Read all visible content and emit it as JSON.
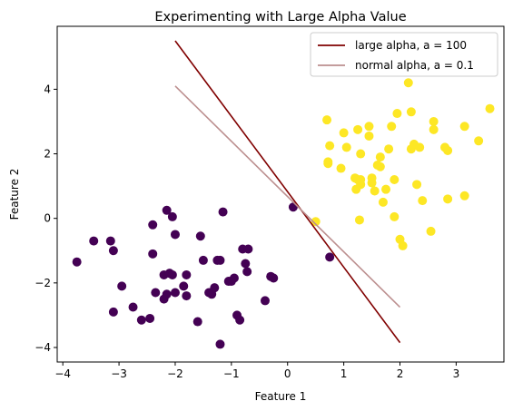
{
  "chart_data": {
    "type": "scatter",
    "title": "Experimenting with Large Alpha Value",
    "xlabel": "Feature 1",
    "ylabel": "Feature 2",
    "xlim": [
      -4.1,
      3.85
    ],
    "ylim": [
      -4.45,
      5.95
    ],
    "xticks": [
      -4,
      -3,
      -2,
      -1,
      0,
      1,
      2,
      3
    ],
    "yticks": [
      -4,
      -2,
      0,
      2,
      4
    ],
    "xtick_labels": [
      "−4",
      "−3",
      "−2",
      "−1",
      "0",
      "1",
      "2",
      "3"
    ],
    "ytick_labels": [
      "−4",
      "−2",
      "0",
      "2",
      "4"
    ],
    "grid": false,
    "legend_position": "top-right",
    "series": [
      {
        "kind": "points",
        "color": "#440154",
        "points": [
          [
            -3.75,
            -1.35
          ],
          [
            -3.45,
            -0.7
          ],
          [
            -3.15,
            -0.7
          ],
          [
            -3.1,
            -1.0
          ],
          [
            -2.95,
            -2.1
          ],
          [
            -3.1,
            -2.9
          ],
          [
            -2.75,
            -2.75
          ],
          [
            -2.6,
            -3.15
          ],
          [
            -2.45,
            -3.1
          ],
          [
            -2.35,
            -2.3
          ],
          [
            -2.4,
            -1.1
          ],
          [
            -2.4,
            -0.2
          ],
          [
            -2.2,
            -1.75
          ],
          [
            -2.2,
            -2.5
          ],
          [
            -2.15,
            -2.35
          ],
          [
            -2.1,
            -1.7
          ],
          [
            -2.05,
            -1.75
          ],
          [
            -2.15,
            0.25
          ],
          [
            -2.05,
            0.05
          ],
          [
            -2.0,
            -0.5
          ],
          [
            -2.0,
            -2.3
          ],
          [
            -1.85,
            -2.1
          ],
          [
            -1.8,
            -2.4
          ],
          [
            -1.8,
            -1.75
          ],
          [
            -1.6,
            -3.2
          ],
          [
            -1.55,
            -0.55
          ],
          [
            -1.5,
            -1.3
          ],
          [
            -1.4,
            -2.3
          ],
          [
            -1.35,
            -2.35
          ],
          [
            -1.3,
            -2.15
          ],
          [
            -1.25,
            -1.3
          ],
          [
            -1.2,
            -1.3
          ],
          [
            -1.15,
            0.2
          ],
          [
            -1.2,
            -3.9
          ],
          [
            -1.05,
            -1.95
          ],
          [
            -1.0,
            -1.95
          ],
          [
            -0.95,
            -1.85
          ],
          [
            -0.9,
            -3.0
          ],
          [
            -0.85,
            -3.15
          ],
          [
            -0.8,
            -0.95
          ],
          [
            -0.75,
            -1.4
          ],
          [
            -0.72,
            -1.65
          ],
          [
            -0.7,
            -0.95
          ],
          [
            -0.4,
            -2.55
          ],
          [
            -0.3,
            -1.8
          ],
          [
            -0.25,
            -1.85
          ],
          [
            0.1,
            0.35
          ],
          [
            0.75,
            -1.2
          ]
        ]
      },
      {
        "kind": "points",
        "color": "#fde725",
        "points": [
          [
            0.5,
            -0.1
          ],
          [
            0.7,
            3.05
          ],
          [
            0.72,
            1.75
          ],
          [
            0.72,
            1.7
          ],
          [
            0.75,
            2.25
          ],
          [
            0.95,
            1.55
          ],
          [
            1.0,
            2.65
          ],
          [
            1.05,
            2.2
          ],
          [
            1.2,
            1.25
          ],
          [
            1.22,
            0.9
          ],
          [
            1.25,
            1.2
          ],
          [
            1.25,
            2.75
          ],
          [
            1.3,
            2.0
          ],
          [
            1.3,
            1.2
          ],
          [
            1.3,
            1.05
          ],
          [
            1.28,
            -0.05
          ],
          [
            1.45,
            2.85
          ],
          [
            1.45,
            2.55
          ],
          [
            1.5,
            1.25
          ],
          [
            1.5,
            1.1
          ],
          [
            1.55,
            0.85
          ],
          [
            1.6,
            1.65
          ],
          [
            1.65,
            1.9
          ],
          [
            1.65,
            1.6
          ],
          [
            1.7,
            0.5
          ],
          [
            1.75,
            0.9
          ],
          [
            1.8,
            2.15
          ],
          [
            1.85,
            2.85
          ],
          [
            1.9,
            1.2
          ],
          [
            1.9,
            0.05
          ],
          [
            1.95,
            3.25
          ],
          [
            2.0,
            -0.65
          ],
          [
            2.05,
            -0.85
          ],
          [
            2.15,
            4.2
          ],
          [
            2.2,
            3.3
          ],
          [
            2.2,
            2.15
          ],
          [
            2.25,
            2.3
          ],
          [
            2.3,
            1.05
          ],
          [
            2.35,
            2.2
          ],
          [
            2.4,
            0.55
          ],
          [
            2.55,
            -0.4
          ],
          [
            2.6,
            3.0
          ],
          [
            2.6,
            2.75
          ],
          [
            2.8,
            2.2
          ],
          [
            2.85,
            2.1
          ],
          [
            2.85,
            0.6
          ],
          [
            3.15,
            2.85
          ],
          [
            3.15,
            0.7
          ],
          [
            3.4,
            2.4
          ],
          [
            3.6,
            3.4
          ]
        ]
      },
      {
        "kind": "line",
        "name": "large alpha, a = 100",
        "color": "#800000",
        "points": [
          [
            -2.0,
            5.5
          ],
          [
            2.0,
            -3.85
          ]
        ]
      },
      {
        "kind": "line",
        "name": "normal alpha, a = 0.1",
        "color": "#bc8f8f",
        "points": [
          [
            -2.0,
            4.1
          ],
          [
            2.0,
            -2.75
          ]
        ]
      }
    ]
  }
}
